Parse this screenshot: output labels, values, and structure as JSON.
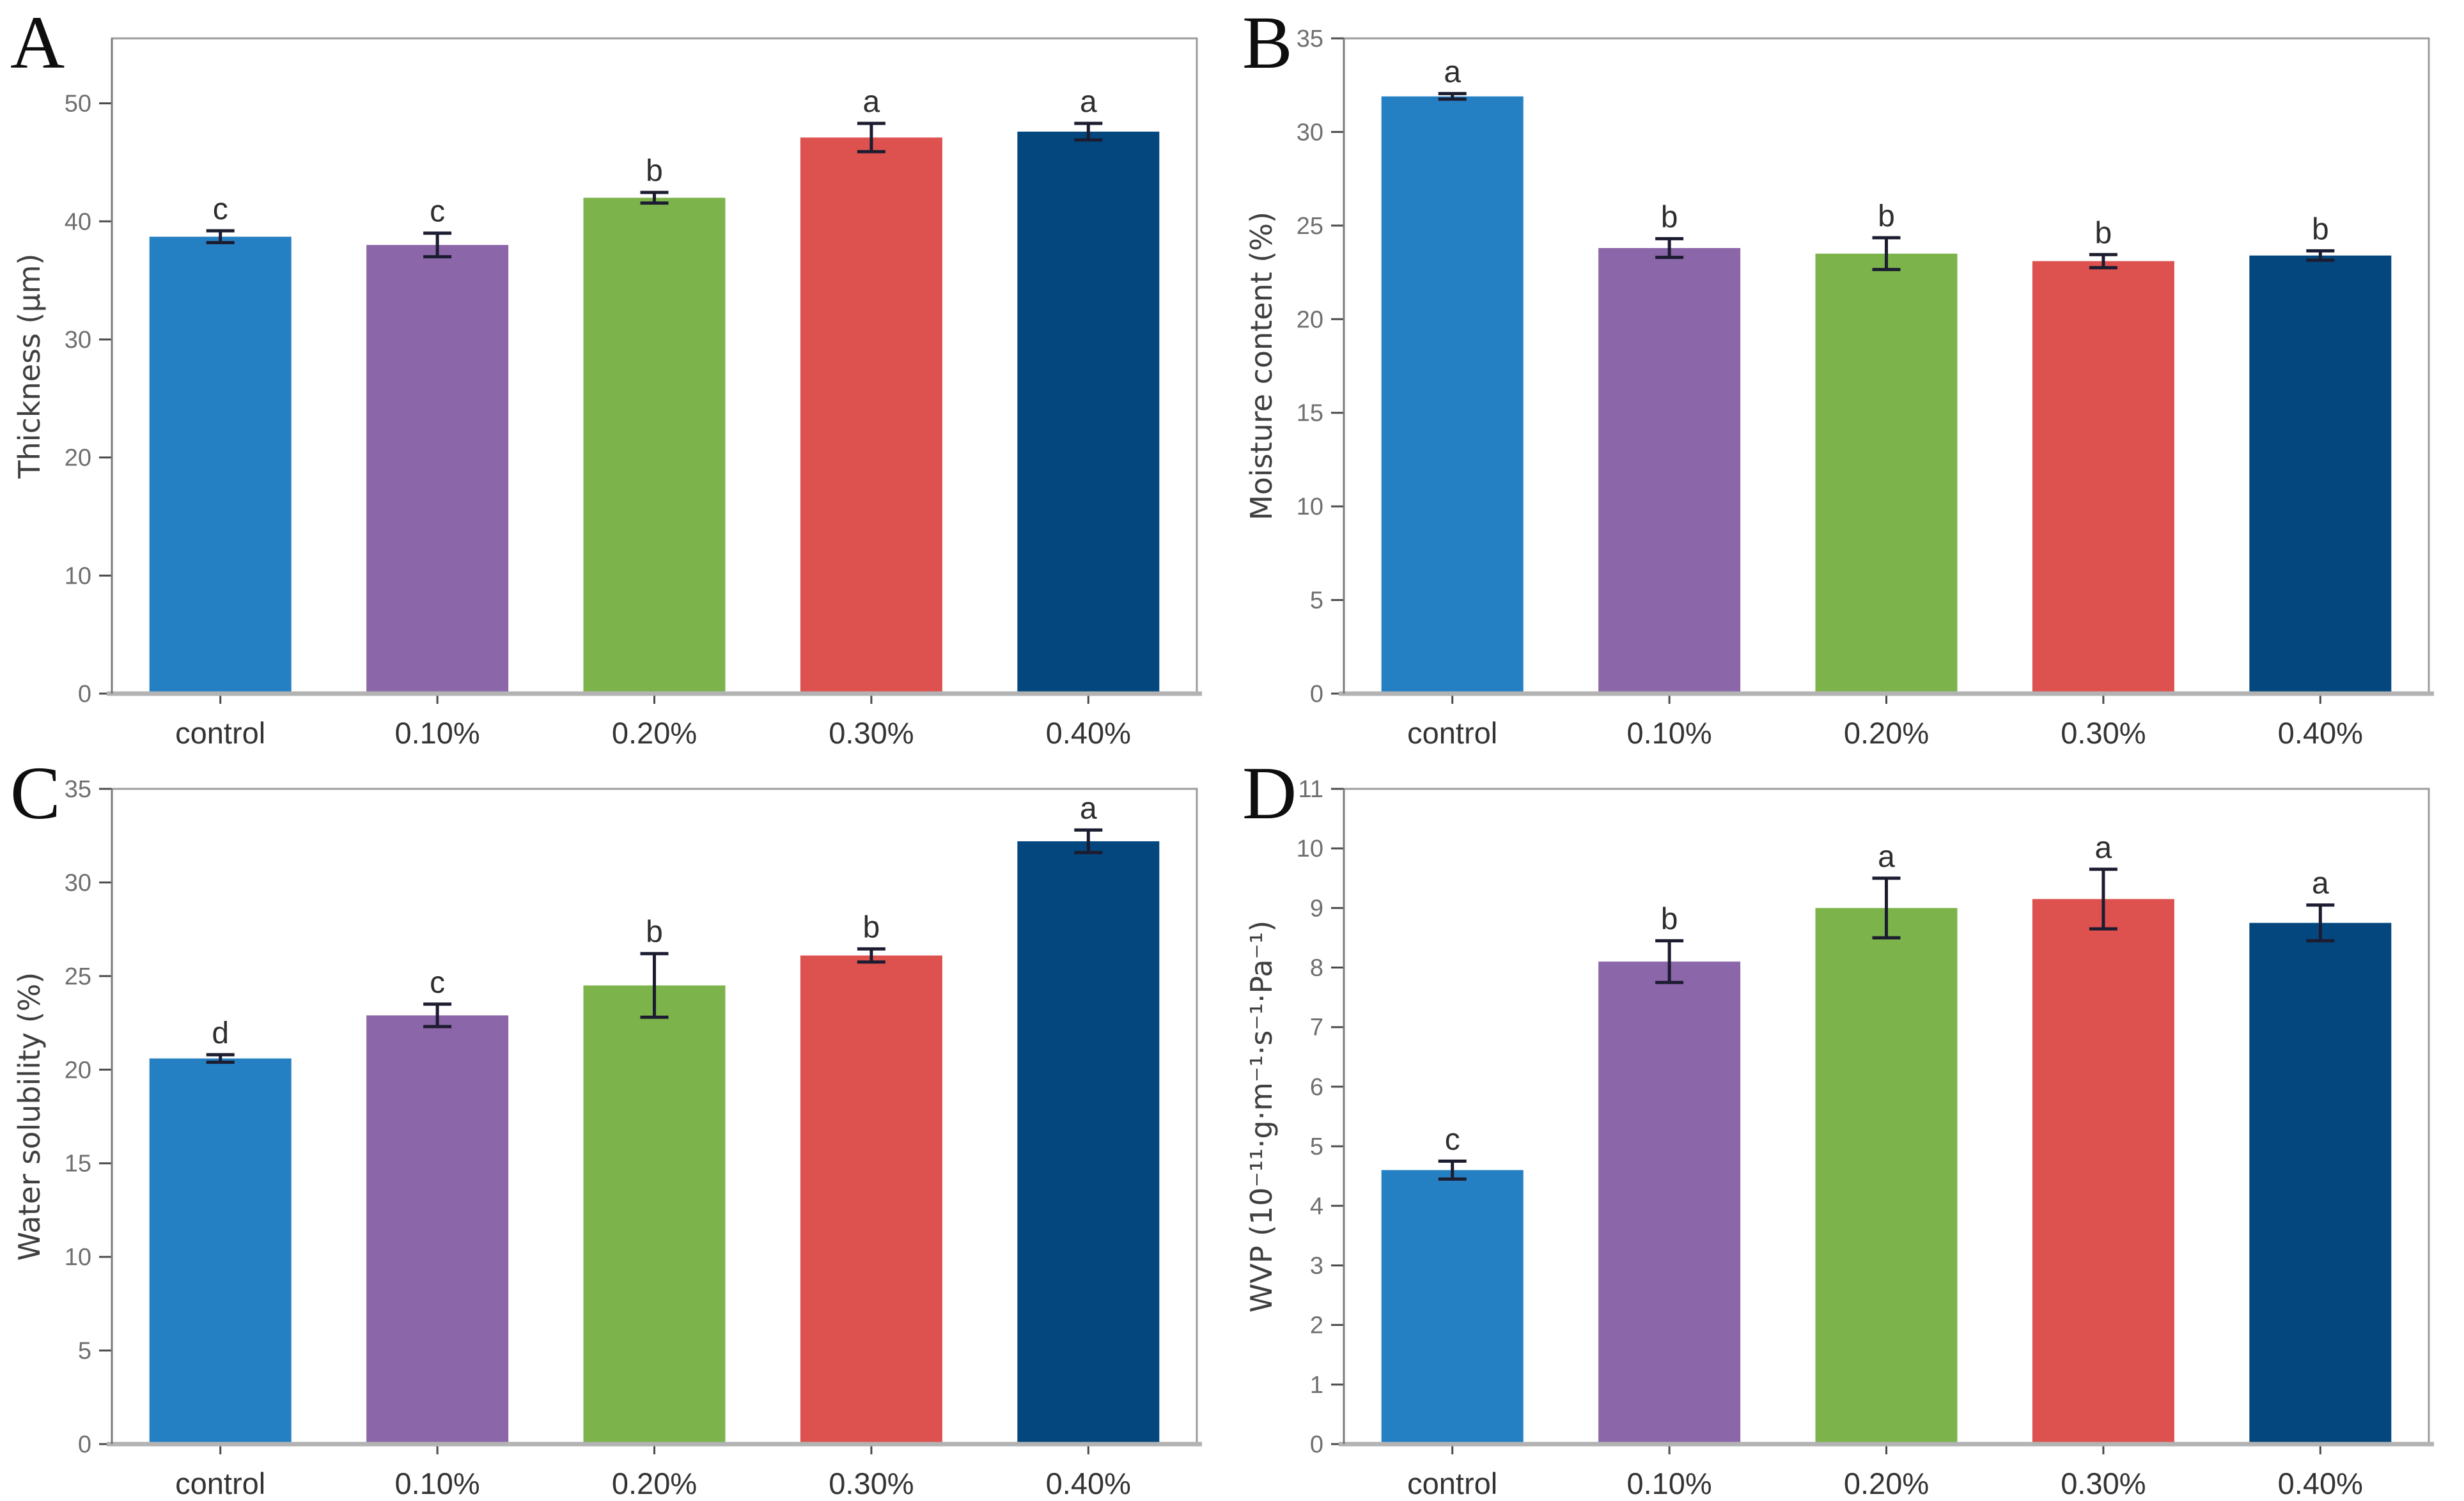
{
  "figure": {
    "background": "#ffffff",
    "frame_color": "#9b9b9b",
    "baseline_color": "#b3b3b3",
    "tick_color": "#4a4a4a",
    "tick_label_color": "#6f6f6f",
    "category_label_color": "#333333",
    "axis_title_color": "#3f3f3f",
    "error_bar_color": "#1c1c30",
    "sig_letter_color": "#2e2e2e",
    "bar_colors": [
      "#2580c3",
      "#8b67a9",
      "#7cb44b",
      "#dd514e",
      "#03477e"
    ],
    "bar_color_names": [
      "blue",
      "purple",
      "green",
      "red",
      "navy"
    ]
  },
  "chart_data": [
    {
      "panel": "A",
      "type": "bar",
      "title": "",
      "xlabel": "",
      "ylabel": "Thickness (μm)",
      "categories": [
        "control",
        "0.10%",
        "0.20%",
        "0.30%",
        "0.40%"
      ],
      "values": [
        38.7,
        38.0,
        42.0,
        47.1,
        47.6
      ],
      "errors": [
        0.5,
        1.0,
        0.45,
        1.2,
        0.7
      ],
      "sig_letters": [
        "c",
        "c",
        "b",
        "a",
        "a"
      ],
      "ylim": [
        0,
        55.5
      ],
      "yticks": [
        0,
        10,
        20,
        30,
        40,
        50
      ],
      "grid": false,
      "legend": "none"
    },
    {
      "panel": "B",
      "type": "bar",
      "title": "",
      "xlabel": "",
      "ylabel": "Moisture content (%)",
      "categories": [
        "control",
        "0.10%",
        "0.20%",
        "0.30%",
        "0.40%"
      ],
      "values": [
        31.9,
        23.8,
        23.5,
        23.1,
        23.4
      ],
      "errors": [
        0.15,
        0.5,
        0.85,
        0.35,
        0.25
      ],
      "sig_letters": [
        "a",
        "b",
        "b",
        "b",
        "b"
      ],
      "ylim": [
        0,
        35
      ],
      "yticks": [
        0,
        5,
        10,
        15,
        20,
        25,
        30,
        35
      ],
      "grid": false,
      "legend": "none"
    },
    {
      "panel": "C",
      "type": "bar",
      "title": "",
      "xlabel": "",
      "ylabel": "Water solubility (%)",
      "categories": [
        "control",
        "0.10%",
        "0.20%",
        "0.30%",
        "0.40%"
      ],
      "values": [
        20.6,
        22.9,
        24.5,
        26.1,
        32.2
      ],
      "errors": [
        0.2,
        0.6,
        1.7,
        0.35,
        0.6
      ],
      "sig_letters": [
        "d",
        "c",
        "b",
        "b",
        "a"
      ],
      "ylim": [
        0,
        35
      ],
      "yticks": [
        0,
        5,
        10,
        15,
        20,
        25,
        30,
        35
      ],
      "grid": false,
      "legend": "none"
    },
    {
      "panel": "D",
      "type": "bar",
      "title": "",
      "xlabel": "",
      "ylabel": "WVP (10⁻¹¹·g·m⁻¹·s⁻¹·Pa⁻¹)",
      "categories": [
        "control",
        "0.10%",
        "0.20%",
        "0.30%",
        "0.40%"
      ],
      "values": [
        4.6,
        8.1,
        9.0,
        9.15,
        8.75
      ],
      "errors": [
        0.15,
        0.35,
        0.5,
        0.5,
        0.3
      ],
      "sig_letters": [
        "c",
        "b",
        "a",
        "a",
        "a"
      ],
      "ylim": [
        0,
        11
      ],
      "yticks": [
        0,
        1,
        2,
        3,
        4,
        5,
        6,
        7,
        8,
        9,
        10,
        11
      ],
      "grid": false,
      "legend": "none"
    }
  ]
}
